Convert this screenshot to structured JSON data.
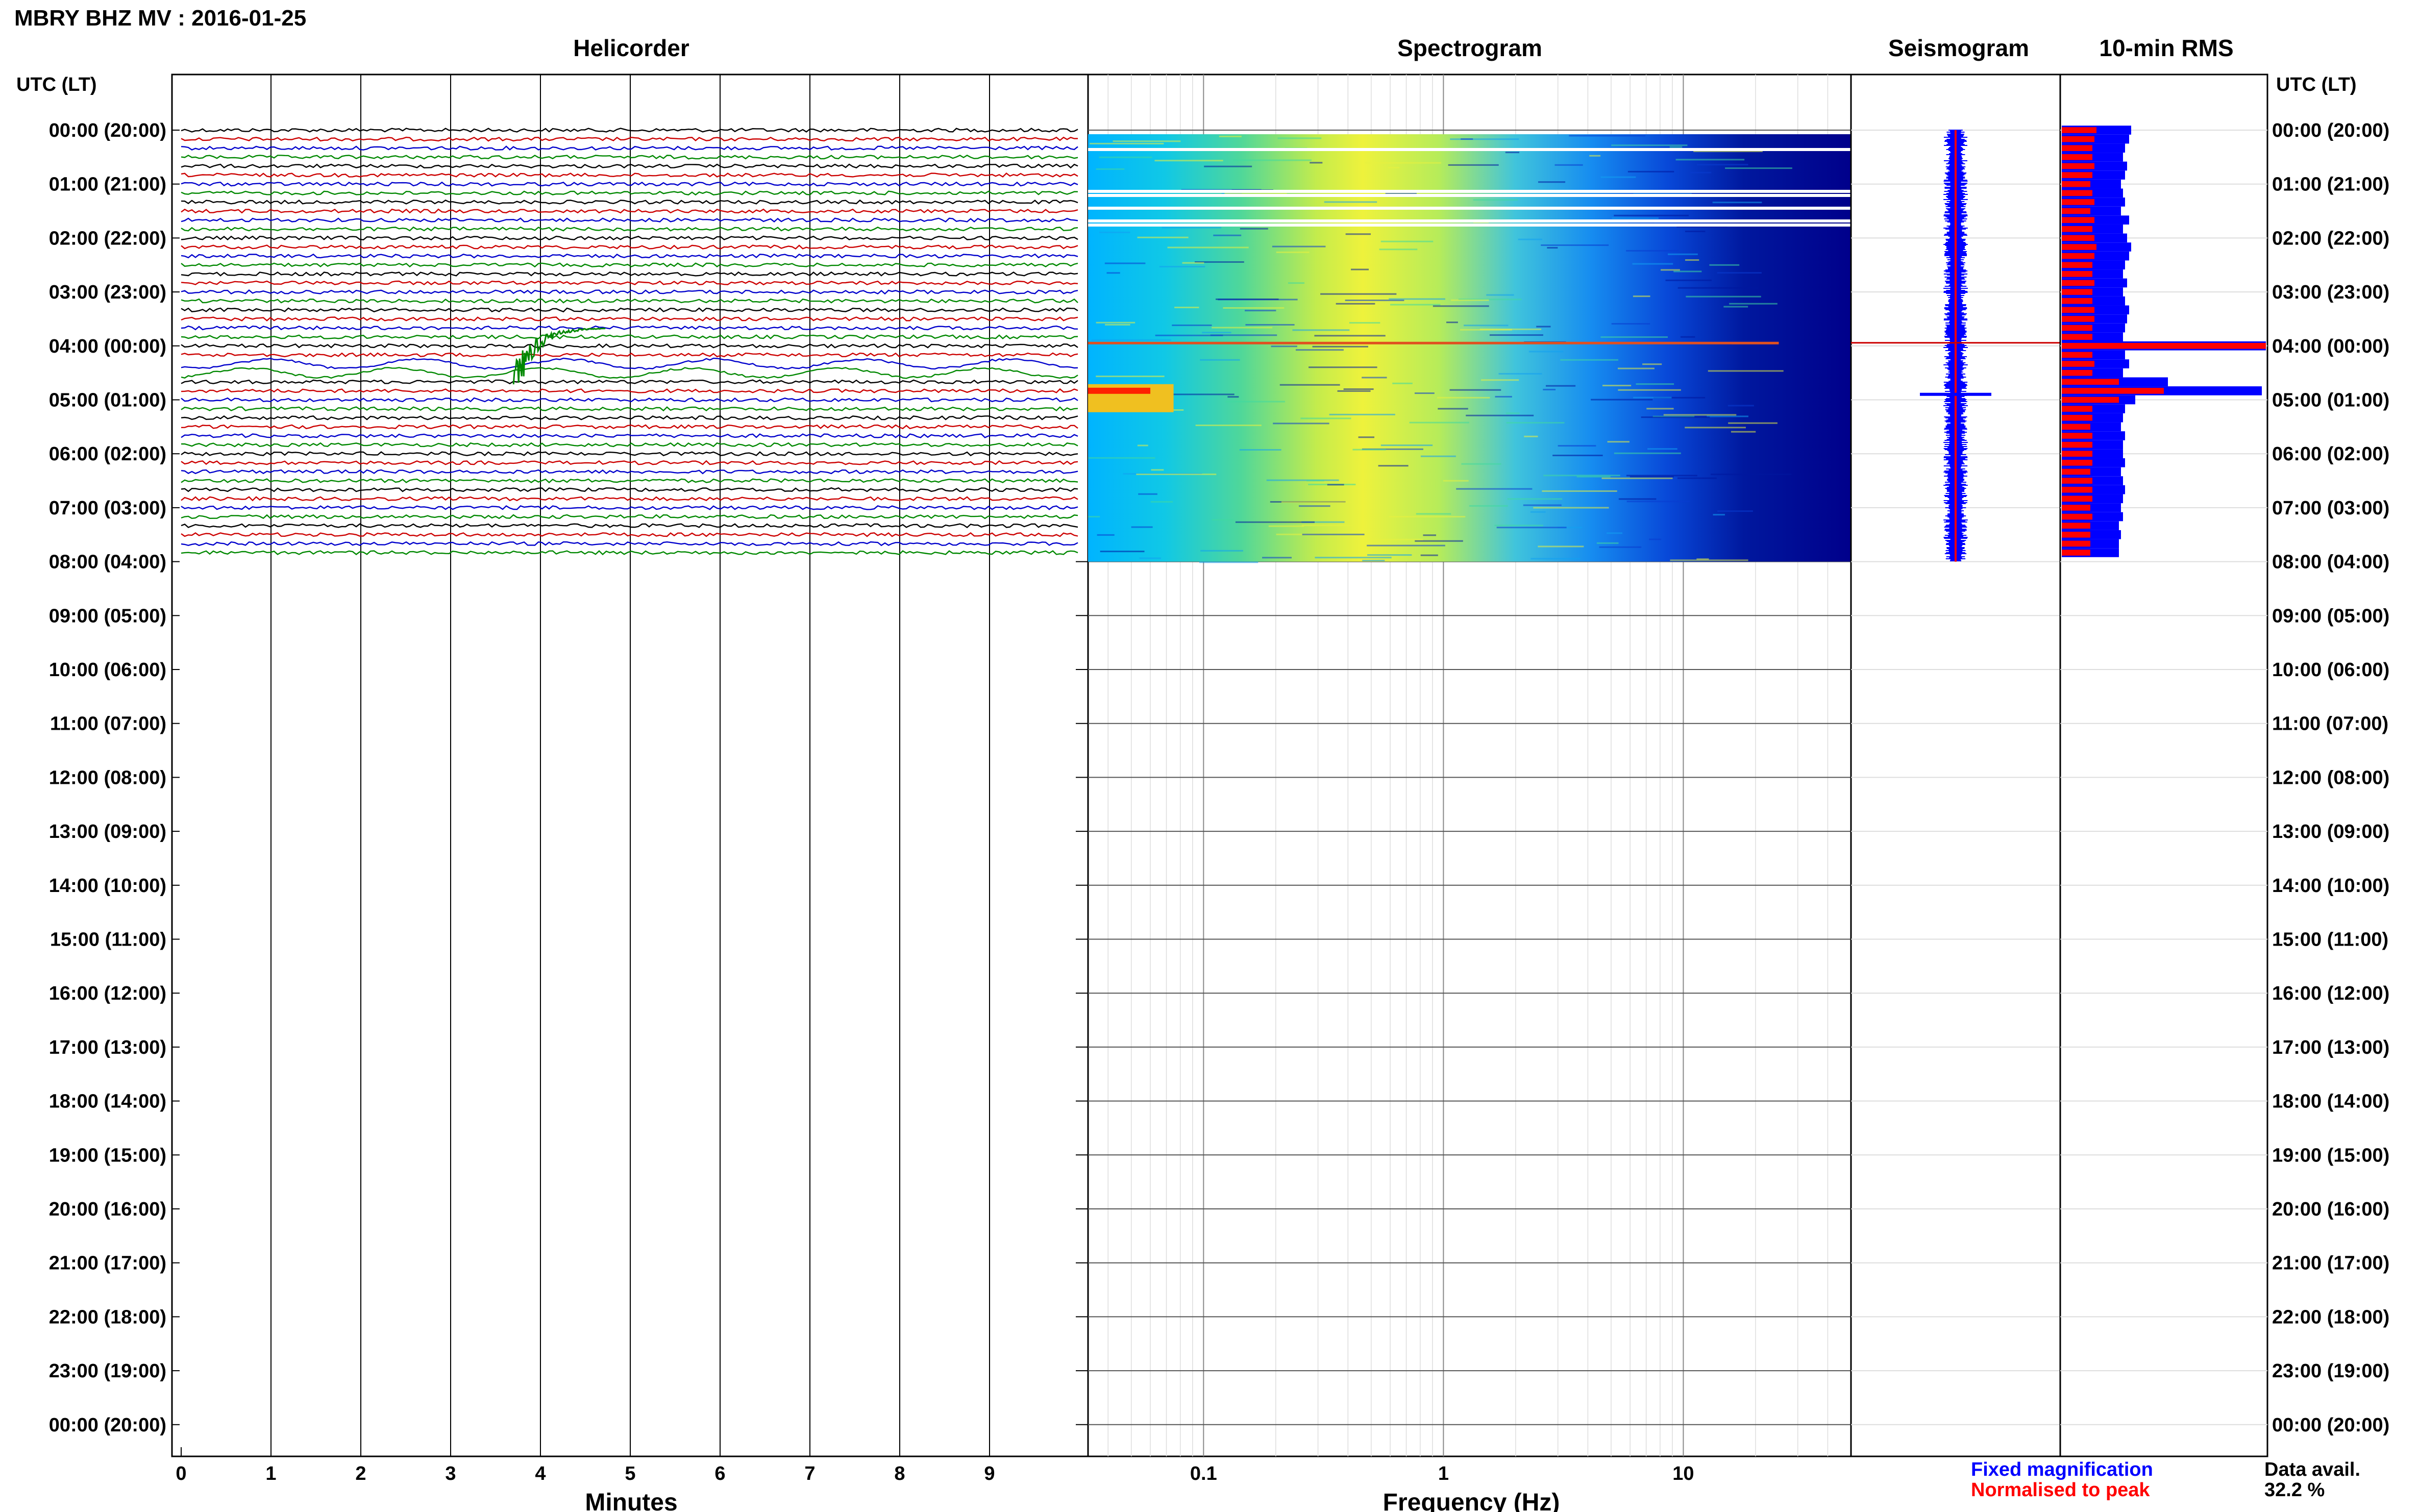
{
  "title": "MBRY BHZ MV : 2016-01-25",
  "panels": {
    "helicorder": "Helicorder",
    "spectrogram": "Spectrogram",
    "seismogram": "Seismogram",
    "rms": "10-min RMS"
  },
  "time_header_left": "UTC (LT)",
  "time_header_right": "UTC (LT)",
  "hour_labels": [
    "00:00 (20:00)",
    "01:00 (21:00)",
    "02:00 (22:00)",
    "03:00 (23:00)",
    "04:00 (00:00)",
    "05:00 (01:00)",
    "06:00 (02:00)",
    "07:00 (03:00)",
    "08:00 (04:00)",
    "09:00 (05:00)",
    "10:00 (06:00)",
    "11:00 (07:00)",
    "12:00 (08:00)",
    "13:00 (09:00)",
    "14:00 (10:00)",
    "15:00 (11:00)",
    "16:00 (12:00)",
    "17:00 (13:00)",
    "18:00 (14:00)",
    "19:00 (15:00)",
    "20:00 (16:00)",
    "21:00 (17:00)",
    "22:00 (18:00)",
    "23:00 (19:00)",
    "00:00 (20:00)"
  ],
  "legend": {
    "fixed": "Fixed magnification",
    "normalised": "Normalised to peak",
    "data_avail_label": "Data avail.",
    "data_avail_value": "32.2 %"
  },
  "colors": {
    "trace_cycle": [
      "#000000",
      "#cc0000",
      "#0000cc",
      "#008800"
    ],
    "fixed": "#0000ff",
    "normalised": "#ff0000",
    "spectrogram_low": "#00008b",
    "spectrogram_high": "#ff0000",
    "grid": "#000000"
  },
  "chart_data": [
    {
      "type": "line",
      "name": "helicorder",
      "title": "Helicorder",
      "xlabel": "Minutes",
      "x_ticks": [
        "0",
        "1",
        "2",
        "3",
        "4",
        "5",
        "6",
        "7",
        "8",
        "9"
      ],
      "xlim": [
        0,
        10
      ],
      "trace_minutes": 10,
      "traces_per_hour": 6,
      "data_hours": 8,
      "total_hours": 24,
      "event": {
        "hour": 3,
        "trace": 4,
        "minute": 3.7
      }
    },
    {
      "type": "heatmap",
      "name": "spectrogram",
      "title": "Spectrogram",
      "xlabel": "Frequency (Hz)",
      "x_ticks": [
        "0.1",
        "1",
        "10"
      ],
      "x_tick_values": [
        0.1,
        1,
        10
      ],
      "xscale": "log",
      "xlim": [
        0.033,
        50
      ],
      "data_hours": 8
    },
    {
      "type": "line",
      "name": "seismogram",
      "title": "Seismogram",
      "data_hours": 8
    },
    {
      "type": "bar",
      "name": "rms",
      "title": "10-min RMS",
      "series": [
        {
          "name": "Fixed magnification",
          "values": [
            0.34,
            0.33,
            0.31,
            0.3,
            0.32,
            0.31,
            0.29,
            0.3,
            0.31,
            0.29,
            0.33,
            0.3,
            0.32,
            0.34,
            0.33,
            0.31,
            0.3,
            0.32,
            0.3,
            0.31,
            0.33,
            0.32,
            0.31,
            0.3,
            1.0,
            0.31,
            0.33,
            0.3,
            0.52,
            0.98,
            0.36,
            0.31,
            0.3,
            0.29,
            0.31,
            0.3,
            0.3,
            0.31,
            0.29,
            0.3,
            0.31,
            0.3,
            0.29,
            0.3,
            0.28,
            0.29,
            0.28,
            0.28
          ]
        },
        {
          "name": "Normalised to peak",
          "values": [
            0.17,
            0.16,
            0.15,
            0.15,
            0.16,
            0.15,
            0.14,
            0.15,
            0.16,
            0.14,
            0.16,
            0.15,
            0.16,
            0.17,
            0.16,
            0.15,
            0.15,
            0.16,
            0.15,
            0.15,
            0.16,
            0.16,
            0.15,
            0.15,
            1.0,
            0.15,
            0.16,
            0.15,
            0.28,
            0.5,
            0.28,
            0.15,
            0.15,
            0.14,
            0.15,
            0.15,
            0.15,
            0.15,
            0.14,
            0.15,
            0.15,
            0.15,
            0.14,
            0.15,
            0.14,
            0.14,
            0.14,
            0.14
          ]
        }
      ]
    }
  ]
}
